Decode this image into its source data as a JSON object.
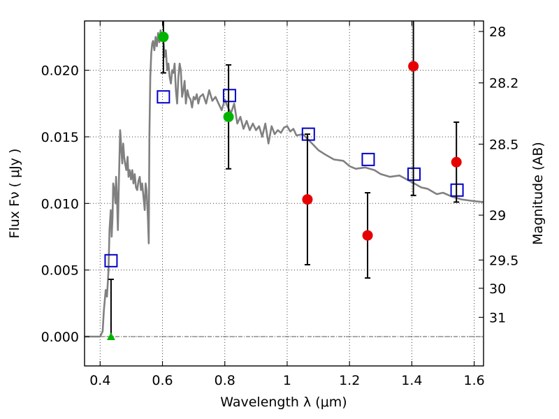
{
  "chart_data": {
    "type": "scatter",
    "xlabel": "Wavelength  λ (μm)",
    "ylabel": "Flux  Fν  ( μJy )",
    "y2label": "Magnitude (AB)",
    "xlim": [
      0.35,
      1.63
    ],
    "ylim": [
      -0.0022,
      0.0237
    ],
    "x_ticks": [
      0.4,
      0.6,
      0.8,
      1.0,
      1.2,
      1.4,
      1.6
    ],
    "x_tick_labels": [
      "0.4",
      "0.6",
      "0.8",
      "1",
      "1.2",
      "1.4",
      "1.6"
    ],
    "y_ticks": [
      0.0,
      0.005,
      0.01,
      0.015,
      0.02
    ],
    "y_tick_labels": [
      "0.000",
      "0.005",
      "0.010",
      "0.015",
      "0.020"
    ],
    "y2_ticks": [
      {
        "label": "28",
        "flux": 0.02291
      },
      {
        "label": "28.2",
        "flux": 0.01905
      },
      {
        "label": "28.5",
        "flux": 0.01445
      },
      {
        "label": "29",
        "flux": 0.00912
      },
      {
        "label": "29.5",
        "flux": 0.00575
      },
      {
        "label": "30",
        "flux": 0.00363
      },
      {
        "label": "31",
        "flux": 0.00145
      }
    ],
    "grid": true,
    "zero_line": true,
    "series": [
      {
        "style": "line",
        "color": "#808080",
        "x": [
          0.35,
          0.4,
          0.408,
          0.412,
          0.418,
          0.422,
          0.427,
          0.43,
          0.434,
          0.437,
          0.44,
          0.442,
          0.446,
          0.449,
          0.451,
          0.454,
          0.457,
          0.46,
          0.462,
          0.464,
          0.466,
          0.468,
          0.471,
          0.474,
          0.477,
          0.48,
          0.484,
          0.488,
          0.491,
          0.495,
          0.499,
          0.503,
          0.507,
          0.511,
          0.515,
          0.519,
          0.523,
          0.527,
          0.531,
          0.535,
          0.539,
          0.543,
          0.546,
          0.549,
          0.553,
          0.556,
          0.558,
          0.561,
          0.564,
          0.567,
          0.57,
          0.574,
          0.578,
          0.582,
          0.586,
          0.59,
          0.594,
          0.598,
          0.601,
          0.604,
          0.607,
          0.611,
          0.615,
          0.619,
          0.623,
          0.627,
          0.631,
          0.635,
          0.639,
          0.643,
          0.647,
          0.651,
          0.655,
          0.659,
          0.663,
          0.667,
          0.671,
          0.675,
          0.68,
          0.685,
          0.69,
          0.695,
          0.7,
          0.705,
          0.71,
          0.715,
          0.72,
          0.73,
          0.74,
          0.75,
          0.76,
          0.77,
          0.78,
          0.79,
          0.8,
          0.81,
          0.82,
          0.83,
          0.84,
          0.85,
          0.86,
          0.87,
          0.88,
          0.89,
          0.9,
          0.91,
          0.92,
          0.93,
          0.94,
          0.95,
          0.96,
          0.97,
          0.98,
          0.99,
          1.0,
          1.01,
          1.02,
          1.03,
          1.05,
          1.08,
          1.1,
          1.12,
          1.15,
          1.18,
          1.2,
          1.22,
          1.25,
          1.28,
          1.3,
          1.33,
          1.36,
          1.4,
          1.43,
          1.45,
          1.48,
          1.5,
          1.53,
          1.56,
          1.59,
          1.63
        ],
        "y": [
          0.0,
          0.0,
          0.0004,
          0.002,
          0.0035,
          0.003,
          0.005,
          0.008,
          0.0095,
          0.0075,
          0.009,
          0.0115,
          0.011,
          0.01,
          0.012,
          0.0105,
          0.008,
          0.0115,
          0.0135,
          0.0155,
          0.015,
          0.014,
          0.013,
          0.0145,
          0.0135,
          0.013,
          0.0125,
          0.0135,
          0.012,
          0.0125,
          0.0118,
          0.0125,
          0.0115,
          0.0122,
          0.0112,
          0.011,
          0.0117,
          0.012,
          0.011,
          0.0115,
          0.0105,
          0.0095,
          0.0115,
          0.011,
          0.009,
          0.007,
          0.015,
          0.0195,
          0.0213,
          0.022,
          0.0222,
          0.0215,
          0.0225,
          0.0218,
          0.0228,
          0.0221,
          0.023,
          0.0225,
          0.0222,
          0.022,
          0.021,
          0.0215,
          0.02,
          0.0205,
          0.0195,
          0.019,
          0.02,
          0.0198,
          0.0205,
          0.0185,
          0.0175,
          0.0195,
          0.0205,
          0.02,
          0.018,
          0.0185,
          0.0192,
          0.0175,
          0.0185,
          0.018,
          0.0178,
          0.0172,
          0.018,
          0.0178,
          0.0182,
          0.0175,
          0.018,
          0.0182,
          0.0175,
          0.0185,
          0.0177,
          0.018,
          0.0175,
          0.017,
          0.0178,
          0.0172,
          0.0168,
          0.0175,
          0.016,
          0.0165,
          0.0156,
          0.0162,
          0.0155,
          0.016,
          0.0155,
          0.0158,
          0.015,
          0.016,
          0.0145,
          0.0158,
          0.0152,
          0.0155,
          0.0153,
          0.0157,
          0.0158,
          0.0154,
          0.0156,
          0.0151,
          0.0152,
          0.0145,
          0.014,
          0.0137,
          0.0133,
          0.0132,
          0.0128,
          0.0126,
          0.0127,
          0.0125,
          0.0122,
          0.012,
          0.0121,
          0.0116,
          0.0112,
          0.0111,
          0.0107,
          0.0108,
          0.0105,
          0.0103,
          0.0102,
          0.0101
        ]
      },
      {
        "style": "open-square",
        "color": "#0000c8",
        "x": [
          0.435,
          0.603,
          0.815,
          1.068,
          1.26,
          1.407,
          1.545
        ],
        "y": [
          0.0057,
          0.018,
          0.0181,
          0.0152,
          0.0133,
          0.0122,
          0.011
        ]
      },
      {
        "style": "circle-errorbar",
        "color": "#e60000",
        "x": [
          1.065,
          1.258,
          1.405,
          1.543
        ],
        "y": [
          0.0103,
          0.0076,
          0.0203,
          0.0131
        ],
        "err_low": [
          0.0049,
          0.0032,
          0.0097,
          0.003
        ],
        "err_high": [
          0.0049,
          0.0032,
          0.0097,
          0.003
        ]
      },
      {
        "style": "circle-errorbar",
        "color": "#00b400",
        "x": [
          0.603,
          0.812
        ],
        "y": [
          0.0225,
          0.0165
        ],
        "err_low": [
          0.0027,
          0.0039
        ],
        "err_high": [
          0.0027,
          0.0039
        ]
      },
      {
        "style": "triangle-upper-limit",
        "color": "#00b400",
        "x": [
          0.435
        ],
        "y": [
          0.0
        ],
        "err_high": [
          0.0043
        ]
      }
    ]
  }
}
